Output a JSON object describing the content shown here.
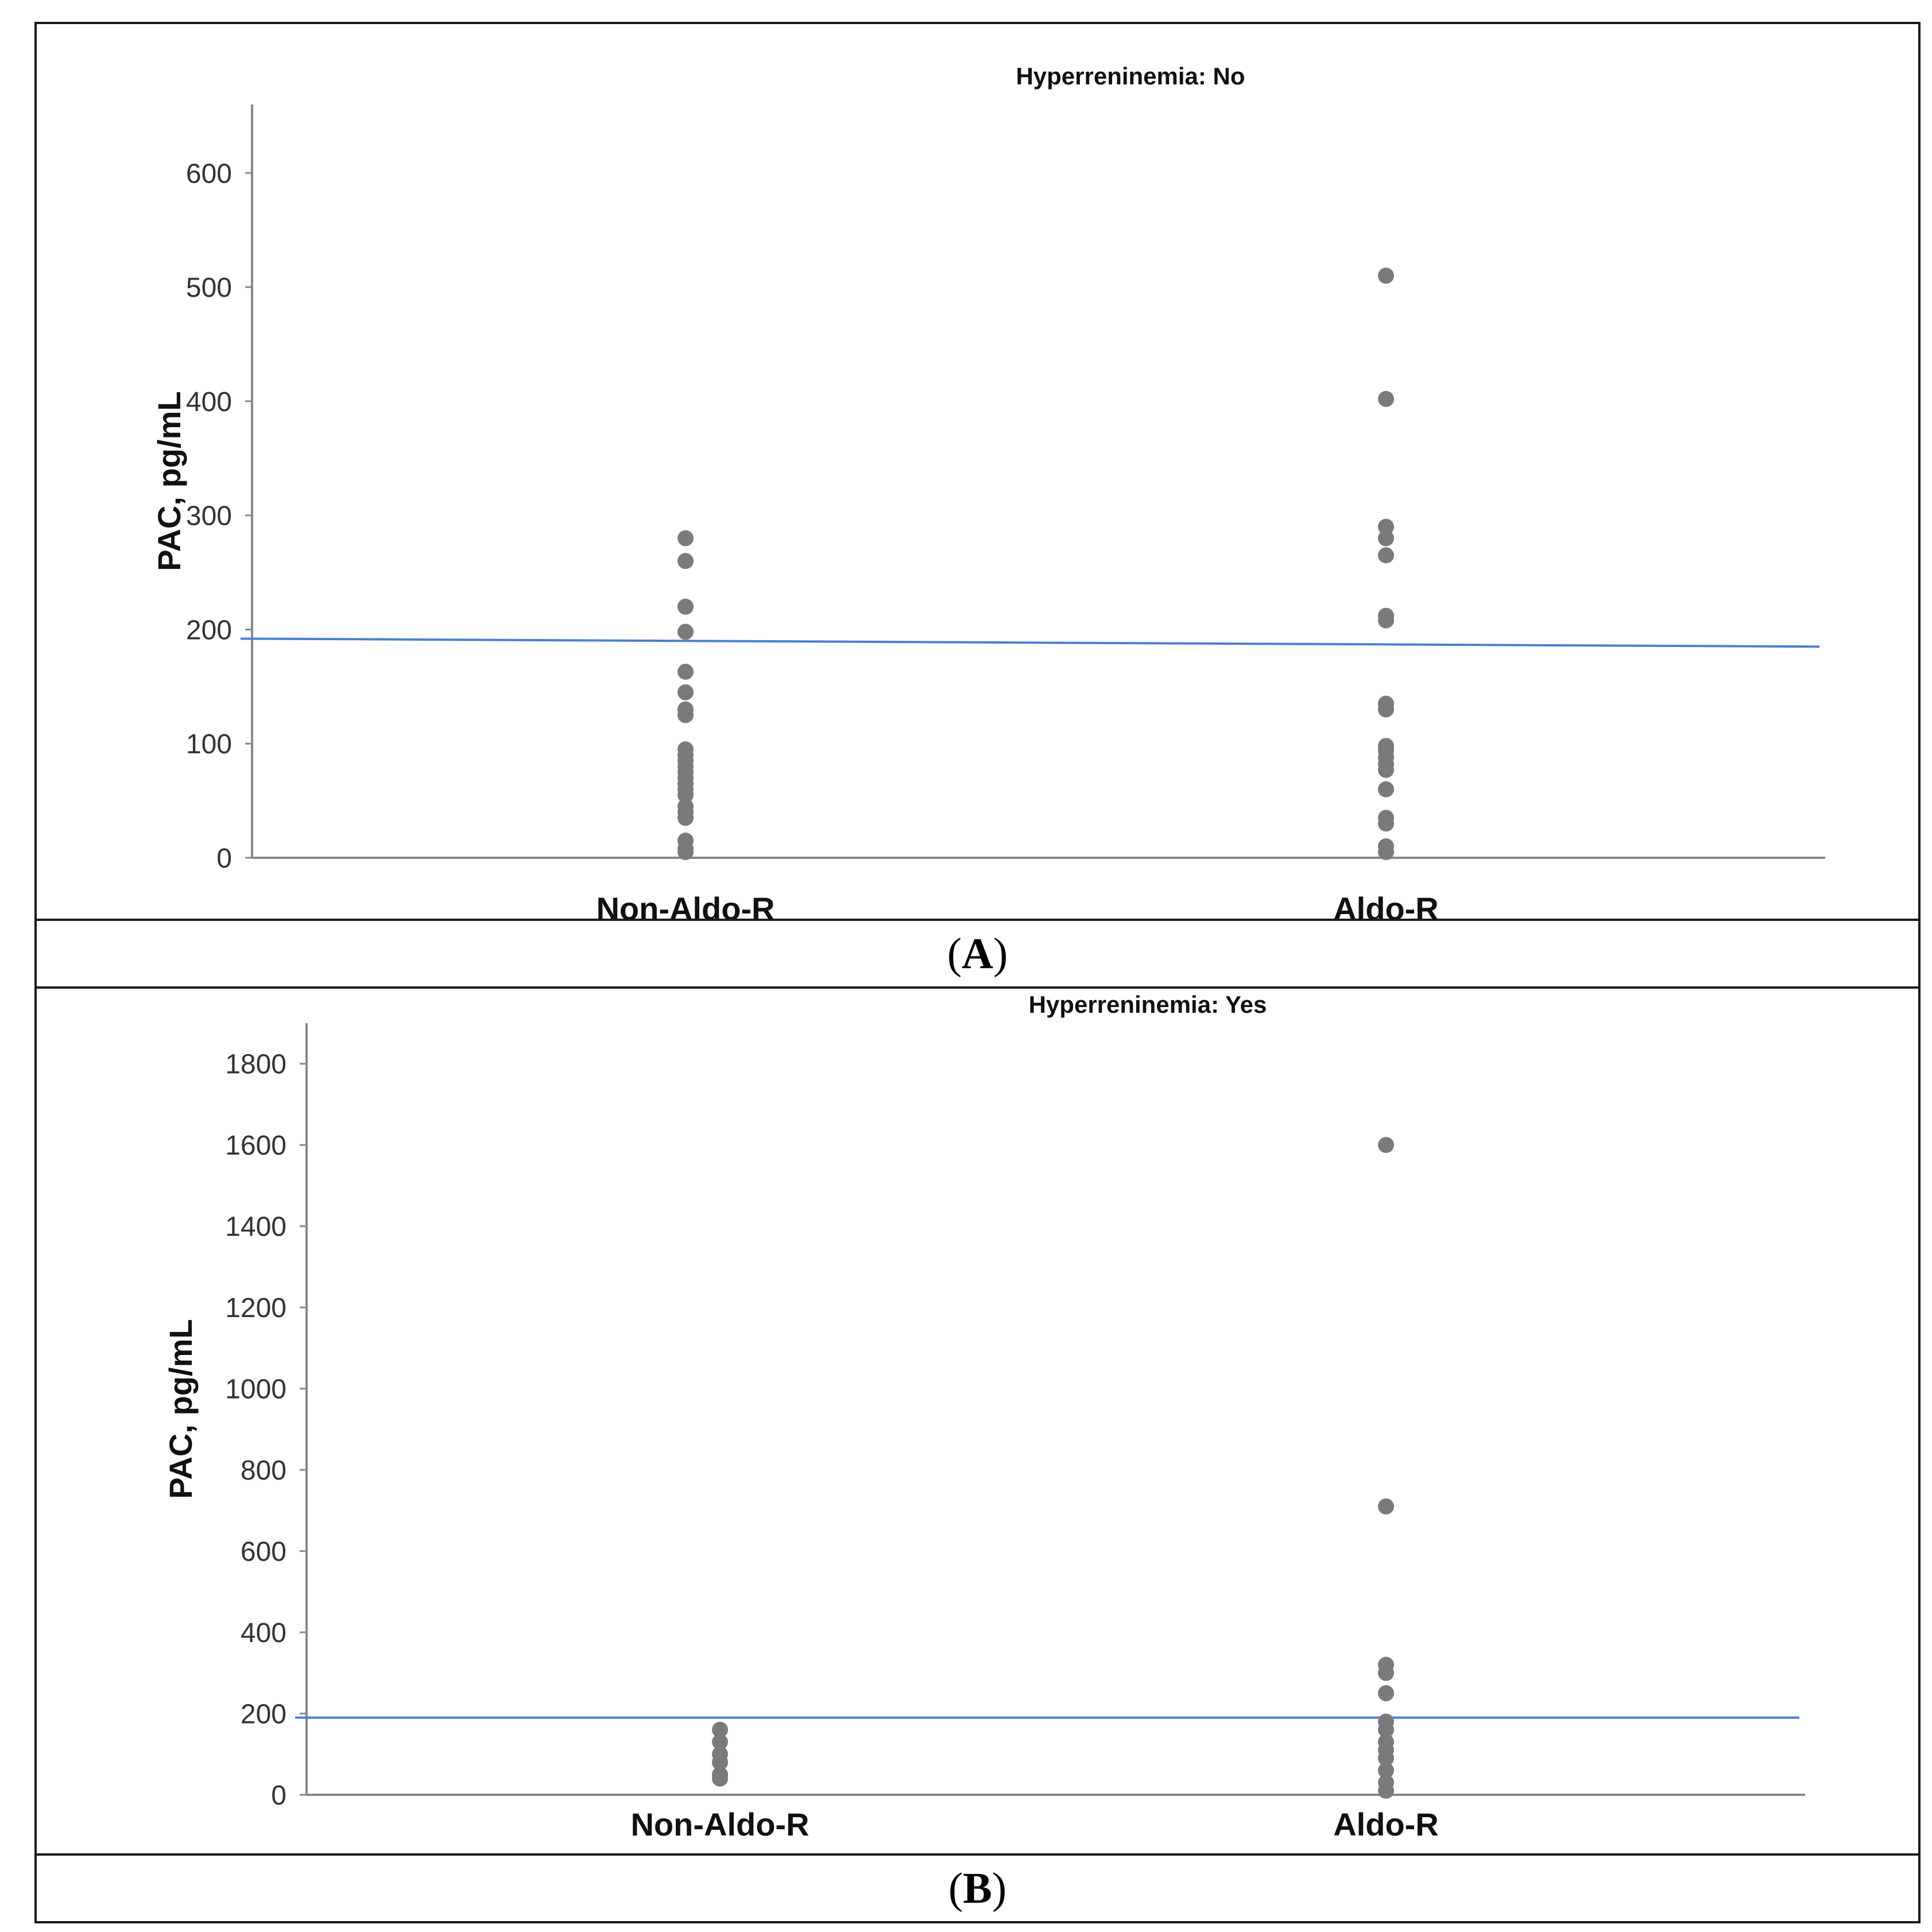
{
  "panels": [
    {
      "label": "A",
      "chart_data": {
        "type": "scatter",
        "title": "Hyperreninemia: No",
        "xlabel": "",
        "ylabel": "PAC, pg/mL",
        "categories": [
          "Non-Aldo-R",
          "Aldo-R"
        ],
        "ylim": [
          0,
          660
        ],
        "yticks": [
          0,
          100,
          200,
          300,
          400,
          500,
          600
        ],
        "grid": false,
        "reference_line": {
          "y_start": 192,
          "y_end": 185,
          "color": "#4a7fd4"
        },
        "point_color": "#7a7a7a",
        "series": [
          {
            "category": "Non-Aldo-R",
            "values": [
              280,
              260,
              220,
              198,
              163,
              145,
              130,
              125,
              95,
              90,
              85,
              80,
              75,
              70,
              65,
              60,
              55,
              45,
              40,
              35,
              15,
              8,
              5
            ]
          },
          {
            "category": "Aldo-R",
            "values": [
              510,
              402,
              290,
              280,
              265,
              212,
              208,
              135,
              130,
              98,
              94,
              88,
              82,
              77,
              60,
              35,
              30,
              10,
              5
            ]
          }
        ]
      }
    },
    {
      "label": "B",
      "chart_data": {
        "type": "scatter",
        "title": "Hyperreninemia: Yes",
        "xlabel": "",
        "ylabel": "PAC, pg/mL",
        "categories": [
          "Non-Aldo-R",
          "Aldo-R"
        ],
        "ylim": [
          0,
          1900
        ],
        "yticks": [
          0,
          200,
          400,
          600,
          800,
          1000,
          1200,
          1400,
          1600,
          1800
        ],
        "grid": false,
        "reference_line": {
          "y_start": 190,
          "y_end": 190,
          "color": "#4a7fd4"
        },
        "point_color": "#7a7a7a",
        "series": [
          {
            "category": "Non-Aldo-R",
            "values": [
              160,
              130,
              100,
              80,
              50,
              40
            ]
          },
          {
            "category": "Aldo-R",
            "values": [
              1600,
              710,
              320,
              300,
              250,
              180,
              160,
              130,
              110,
              90,
              60,
              30,
              10
            ]
          }
        ]
      }
    }
  ]
}
